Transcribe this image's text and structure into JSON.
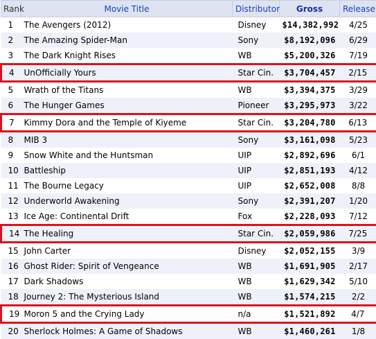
{
  "headers": {
    "rank": "Rank",
    "title": "Movie Title",
    "distributor": "Distributor",
    "gross": "Gross",
    "release": "Release"
  },
  "accent_color": "#e0101a",
  "rows": [
    {
      "rank": "1",
      "title": "The Avengers (2012)",
      "distributor": "Disney",
      "gross": "$14,382,992",
      "release": "4/25",
      "highlight": false
    },
    {
      "rank": "2",
      "title": "The Amazing Spider-Man",
      "distributor": "Sony",
      "gross": "$8,192,096",
      "release": "6/29",
      "highlight": false
    },
    {
      "rank": "3",
      "title": "The Dark Knight Rises",
      "distributor": "WB",
      "gross": "$5,200,326",
      "release": "7/19",
      "highlight": false
    },
    {
      "rank": "4",
      "title": "UnOfficially Yours",
      "distributor": "Star Cin.",
      "gross": "$3,704,457",
      "release": "2/15",
      "highlight": true
    },
    {
      "rank": "5",
      "title": "Wrath of the Titans",
      "distributor": "WB",
      "gross": "$3,394,375",
      "release": "3/29",
      "highlight": false
    },
    {
      "rank": "6",
      "title": "The Hunger Games",
      "distributor": "Pioneer",
      "gross": "$3,295,973",
      "release": "3/22",
      "highlight": false
    },
    {
      "rank": "7",
      "title": "Kimmy Dora and the Temple of Kiyeme",
      "distributor": "Star Cin.",
      "gross": "$3,204,780",
      "release": "6/13",
      "highlight": true
    },
    {
      "rank": "8",
      "title": "MIB 3",
      "distributor": "Sony",
      "gross": "$3,161,098",
      "release": "5/23",
      "highlight": false
    },
    {
      "rank": "9",
      "title": "Snow White and the Huntsman",
      "distributor": "UIP",
      "gross": "$2,892,696",
      "release": "6/1",
      "highlight": false
    },
    {
      "rank": "10",
      "title": "Battleship",
      "distributor": "UIP",
      "gross": "$2,851,193",
      "release": "4/12",
      "highlight": false
    },
    {
      "rank": "11",
      "title": "The Bourne Legacy",
      "distributor": "UIP",
      "gross": "$2,652,008",
      "release": "8/8",
      "highlight": false
    },
    {
      "rank": "12",
      "title": "Underworld Awakening",
      "distributor": "Sony",
      "gross": "$2,391,207",
      "release": "1/20",
      "highlight": false
    },
    {
      "rank": "13",
      "title": "Ice Age: Continental Drift",
      "distributor": "Fox",
      "gross": "$2,228,093",
      "release": "7/12",
      "highlight": false
    },
    {
      "rank": "14",
      "title": "The Healing",
      "distributor": "Star Cin.",
      "gross": "$2,059,986",
      "release": "7/25",
      "highlight": true
    },
    {
      "rank": "15",
      "title": "John Carter",
      "distributor": "Disney",
      "gross": "$2,052,155",
      "release": "3/9",
      "highlight": false
    },
    {
      "rank": "16",
      "title": "Ghost Rider: Spirit of Vengeance",
      "distributor": "WB",
      "gross": "$1,691,905",
      "release": "2/17",
      "highlight": false
    },
    {
      "rank": "17",
      "title": "Dark Shadows",
      "distributor": "WB",
      "gross": "$1,629,342",
      "release": "5/10",
      "highlight": false
    },
    {
      "rank": "18",
      "title": "Journey 2: The Mysterious Island",
      "distributor": "WB",
      "gross": "$1,574,215",
      "release": "2/2",
      "highlight": false
    },
    {
      "rank": "19",
      "title": "Moron 5 and the Crying Lady",
      "distributor": "n/a",
      "gross": "$1,521,892",
      "release": "4/7",
      "highlight": true
    },
    {
      "rank": "20",
      "title": "Sherlock Holmes: A Game of Shadows",
      "distributor": "WB",
      "gross": "$1,460,261",
      "release": "1/8",
      "highlight": false
    }
  ]
}
